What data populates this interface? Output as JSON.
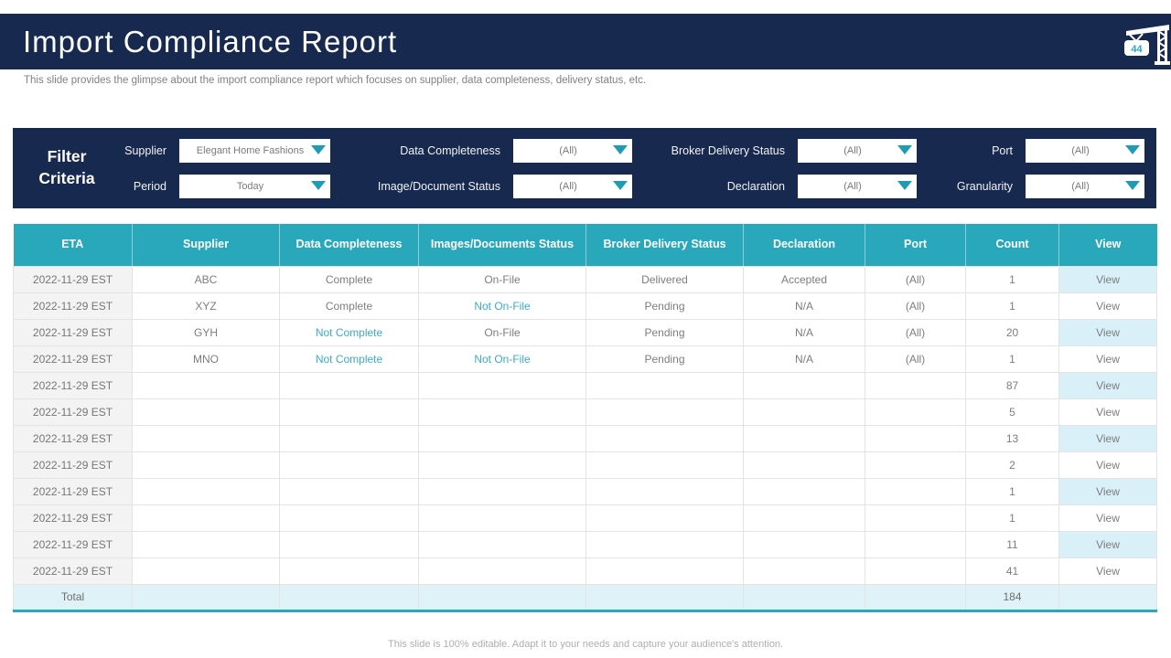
{
  "slide": {
    "title": "Import Compliance Report",
    "subtitle": "This slide provides the glimpse about the import compliance report which focuses on supplier, data completeness, delivery status, etc.",
    "page_number": "44",
    "footer": "This slide is 100% editable. Adapt it to your needs and capture your audience's attention."
  },
  "colors": {
    "navy": "#17294e",
    "teal_header": "#2aa8bb",
    "accent_text": "#39acc9",
    "shaded_cell": "#d9f0f9",
    "total_row_bg": "#def2f8"
  },
  "filters": {
    "heading_line1": "Filter",
    "heading_line2": "Criteria",
    "items": [
      {
        "label": "Supplier",
        "value": "Elegant Home Fashions"
      },
      {
        "label": "Period",
        "value": "Today"
      },
      {
        "label": "Data Completeness",
        "value": "(All)"
      },
      {
        "label": "Image/Document Status",
        "value": "(All)"
      },
      {
        "label": "Broker Delivery Status",
        "value": "(All)"
      },
      {
        "label": "Declaration",
        "value": "(All)"
      },
      {
        "label": "Port",
        "value": "(All)"
      },
      {
        "label": "Granularity",
        "value": "(All)"
      }
    ]
  },
  "table": {
    "columns": [
      "ETA",
      "Supplier",
      "Data Completeness",
      "Images/Documents Status",
      "Broker Delivery Status",
      "Declaration",
      "Port",
      "Count",
      "View"
    ],
    "view_label": "View",
    "rows": [
      {
        "eta": "2022-11-29  EST",
        "cells": [
          {
            "t": "ABC"
          },
          {
            "t": "Complete"
          },
          {
            "t": "On-File"
          },
          {
            "t": "Delivered"
          },
          {
            "t": "Accepted"
          },
          {
            "t": "(All)"
          }
        ],
        "count": "1"
      },
      {
        "eta": "2022-11-29  EST",
        "cells": [
          {
            "t": "XYZ"
          },
          {
            "t": "Complete"
          },
          {
            "t": "Not On-File",
            "accent": true
          },
          {
            "t": "Pending"
          },
          {
            "t": "N/A"
          },
          {
            "t": "(All)"
          }
        ],
        "count": "1"
      },
      {
        "eta": "2022-11-29  EST",
        "cells": [
          {
            "t": "GYH"
          },
          {
            "t": "Not Complete",
            "accent": true
          },
          {
            "t": "On-File"
          },
          {
            "t": "Pending"
          },
          {
            "t": "N/A"
          },
          {
            "t": "(All)"
          }
        ],
        "count": "20"
      },
      {
        "eta": "2022-11-29  EST",
        "cells": [
          {
            "t": "MNO"
          },
          {
            "t": "Not Complete",
            "accent": true
          },
          {
            "t": "Not On-File",
            "accent": true
          },
          {
            "t": "Pending"
          },
          {
            "t": "N/A"
          },
          {
            "t": "(All)"
          }
        ],
        "count": "1"
      },
      {
        "eta": "2022-11-29  EST",
        "cells": [
          {
            "t": ""
          },
          {
            "t": ""
          },
          {
            "t": ""
          },
          {
            "t": ""
          },
          {
            "t": ""
          },
          {
            "t": ""
          }
        ],
        "count": "87"
      },
      {
        "eta": "2022-11-29  EST",
        "cells": [
          {
            "t": ""
          },
          {
            "t": ""
          },
          {
            "t": ""
          },
          {
            "t": ""
          },
          {
            "t": ""
          },
          {
            "t": ""
          }
        ],
        "count": "5"
      },
      {
        "eta": "2022-11-29  EST",
        "cells": [
          {
            "t": ""
          },
          {
            "t": ""
          },
          {
            "t": ""
          },
          {
            "t": ""
          },
          {
            "t": ""
          },
          {
            "t": ""
          }
        ],
        "count": "13"
      },
      {
        "eta": "2022-11-29  EST",
        "cells": [
          {
            "t": ""
          },
          {
            "t": ""
          },
          {
            "t": ""
          },
          {
            "t": ""
          },
          {
            "t": ""
          },
          {
            "t": ""
          }
        ],
        "count": "2"
      },
      {
        "eta": "2022-11-29  EST",
        "cells": [
          {
            "t": ""
          },
          {
            "t": ""
          },
          {
            "t": ""
          },
          {
            "t": ""
          },
          {
            "t": ""
          },
          {
            "t": ""
          }
        ],
        "count": "1"
      },
      {
        "eta": "2022-11-29  EST",
        "cells": [
          {
            "t": ""
          },
          {
            "t": ""
          },
          {
            "t": ""
          },
          {
            "t": ""
          },
          {
            "t": ""
          },
          {
            "t": ""
          }
        ],
        "count": "1"
      },
      {
        "eta": "2022-11-29  EST",
        "cells": [
          {
            "t": ""
          },
          {
            "t": ""
          },
          {
            "t": ""
          },
          {
            "t": ""
          },
          {
            "t": ""
          },
          {
            "t": ""
          }
        ],
        "count": "11"
      },
      {
        "eta": "2022-11-29  EST",
        "cells": [
          {
            "t": ""
          },
          {
            "t": ""
          },
          {
            "t": ""
          },
          {
            "t": ""
          },
          {
            "t": ""
          },
          {
            "t": ""
          }
        ],
        "count": "41"
      }
    ],
    "total_label": "Total",
    "total_count": "184"
  }
}
